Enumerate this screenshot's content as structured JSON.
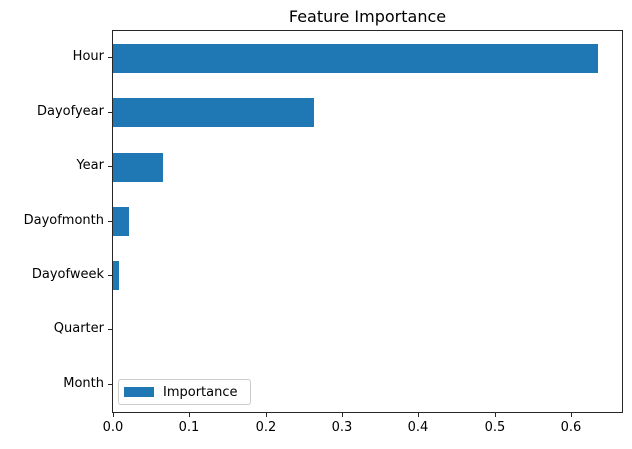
{
  "figure": {
    "background": "#ffffff",
    "axis_color": "#262626",
    "text_color": "#000000"
  },
  "chart_data": {
    "type": "bar",
    "orientation": "horizontal",
    "title": "Feature Importance",
    "categories": [
      "Hour",
      "Dayofyear",
      "Year",
      "Dayofmonth",
      "Dayofweek",
      "Quarter",
      "Month"
    ],
    "values": [
      0.635,
      0.264,
      0.065,
      0.021,
      0.008,
      0.0,
      0.0
    ],
    "series_name": "Importance",
    "bar_color": "#1f77b4",
    "xlabel": "",
    "ylabel": "",
    "xlim": [
      0,
      0.667
    ],
    "xtick_labels": [
      "0.0",
      "0.1",
      "0.2",
      "0.3",
      "0.4",
      "0.5",
      "0.6"
    ],
    "xtick_values": [
      0.0,
      0.1,
      0.2,
      0.3,
      0.4,
      0.5,
      0.6
    ],
    "grid": false,
    "legend": {
      "label": "Importance",
      "position": "lower-left"
    }
  }
}
